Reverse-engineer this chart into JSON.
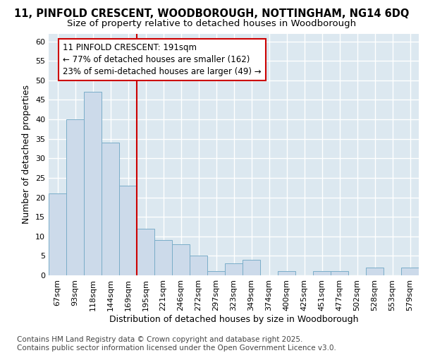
{
  "title_line1": "11, PINFOLD CRESCENT, WOODBOROUGH, NOTTINGHAM, NG14 6DQ",
  "title_line2": "Size of property relative to detached houses in Woodborough",
  "xlabel": "Distribution of detached houses by size in Woodborough",
  "ylabel": "Number of detached properties",
  "categories": [
    "67sqm",
    "93sqm",
    "118sqm",
    "144sqm",
    "169sqm",
    "195sqm",
    "221sqm",
    "246sqm",
    "272sqm",
    "297sqm",
    "323sqm",
    "349sqm",
    "374sqm",
    "400sqm",
    "425sqm",
    "451sqm",
    "477sqm",
    "502sqm",
    "528sqm",
    "553sqm",
    "579sqm"
  ],
  "values": [
    21,
    40,
    47,
    34,
    23,
    12,
    9,
    8,
    5,
    1,
    3,
    4,
    0,
    1,
    0,
    1,
    1,
    0,
    2,
    0,
    2
  ],
  "bar_color": "#ccdaea",
  "bar_edge_color": "#7aadc8",
  "ref_line_color": "#cc0000",
  "ref_line_x": 5,
  "annotation_text": "11 PINFOLD CRESCENT: 191sqm\n← 77% of detached houses are smaller (162)\n23% of semi-detached houses are larger (49) →",
  "annotation_box_color": "#ffffff",
  "annotation_box_edge_color": "#cc0000",
  "ylim": [
    0,
    62
  ],
  "yticks": [
    0,
    5,
    10,
    15,
    20,
    25,
    30,
    35,
    40,
    45,
    50,
    55,
    60
  ],
  "plot_bg_color": "#dce8f0",
  "fig_bg_color": "#ffffff",
  "grid_color": "#ffffff",
  "footer_line1": "Contains HM Land Registry data © Crown copyright and database right 2025.",
  "footer_line2": "Contains public sector information licensed under the Open Government Licence v3.0.",
  "title_fontsize": 10.5,
  "subtitle_fontsize": 9.5,
  "axis_label_fontsize": 9,
  "tick_fontsize": 8,
  "annotation_fontsize": 8.5,
  "footer_fontsize": 7.5
}
